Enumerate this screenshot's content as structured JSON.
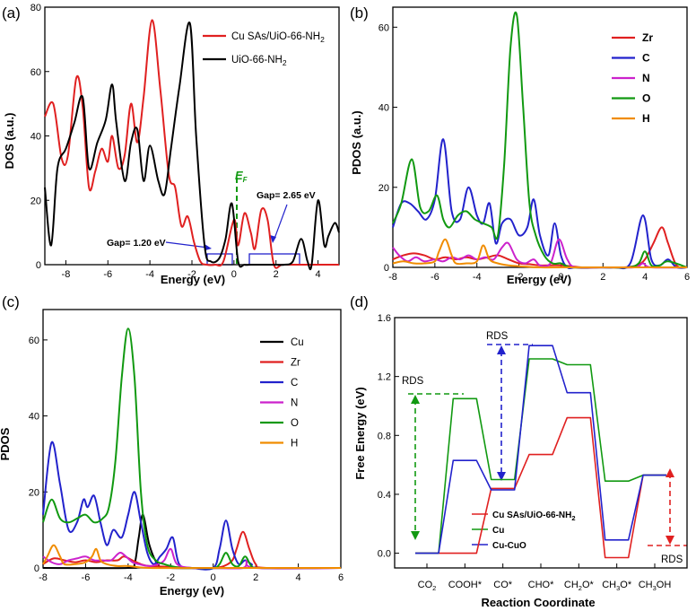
{
  "colors": {
    "black": "#000000",
    "red": "#e02020",
    "blue": "#2222cc",
    "magenta": "#cc22cc",
    "green": "#119911",
    "orange": "#f08c00"
  },
  "chart_data": [
    {
      "panel": "(a)",
      "type": "line",
      "xlabel": "Energy (eV)",
      "ylabel": "DOS (a.u.)",
      "xlim": [
        -9,
        5
      ],
      "ylim": [
        0,
        80
      ],
      "xticks": [
        "-8",
        "-6",
        "-4",
        "-2",
        "0",
        "2",
        "4"
      ],
      "yticks": [
        "0",
        "20",
        "40",
        "60",
        "80"
      ],
      "series": [
        {
          "name": "Cu SAs/UiO-66-NH2",
          "label_main": "Cu SAs/UiO-66-NH",
          "label_sub": "2",
          "color": "#e02020",
          "x": [
            -9,
            -8.6,
            -8.2,
            -7.9,
            -7.5,
            -7.2,
            -6.9,
            -6.6,
            -6.3,
            -6.0,
            -5.8,
            -5.5,
            -5.2,
            -4.9,
            -4.6,
            -4.3,
            -3.9,
            -3.5,
            -3.1,
            -2.8,
            -2.5,
            -2.2,
            -1.9,
            -1.6,
            -1.3,
            -0.9,
            -0.5,
            0,
            0.2,
            0.5,
            0.8,
            1.0,
            1.3,
            1.6,
            1.9,
            2.3,
            3,
            5
          ],
          "y": [
            46,
            50,
            33,
            34,
            58,
            49,
            24,
            29,
            36,
            32,
            40,
            30,
            34,
            50,
            38,
            52,
            76,
            54,
            28,
            24,
            12,
            15,
            7,
            1,
            0,
            0,
            1,
            14,
            6,
            16,
            10,
            5,
            17,
            14,
            0,
            0,
            0,
            0
          ]
        },
        {
          "name": "UiO-66-NH2",
          "label_main": "UiO-66-NH",
          "label_sub": "2",
          "color": "#000000",
          "x": [
            -9,
            -8.7,
            -8.4,
            -8.0,
            -7.6,
            -7.2,
            -6.9,
            -6.5,
            -6.1,
            -5.8,
            -5.6,
            -5.2,
            -4.9,
            -4.6,
            -4.3,
            -4.0,
            -3.6,
            -3.3,
            -3.0,
            -2.6,
            -2.1,
            -1.8,
            -1.4,
            -1.1,
            -0.7,
            -0.4,
            -0.1,
            0.2,
            0.5,
            0.8,
            1.2,
            1.6,
            2.0,
            2.4,
            2.8,
            3.2,
            3.5,
            3.7,
            4.0,
            4.3,
            4.5,
            4.8,
            5.0
          ],
          "y": [
            24,
            6,
            30,
            36,
            44,
            52,
            30,
            38,
            45,
            56,
            44,
            26,
            38,
            42,
            26,
            37,
            26,
            22,
            36,
            55,
            75,
            40,
            6,
            1,
            2,
            8,
            19,
            1,
            0,
            0,
            0,
            0,
            0,
            0,
            1,
            8,
            1,
            0,
            20,
            6,
            9,
            13,
            10
          ]
        }
      ],
      "annotations": {
        "ef_main": "E",
        "ef_sub": "F",
        "gap1": "Gap= 1.20 eV",
        "gap2": "Gap= 2.65 eV"
      }
    },
    {
      "panel": "(b)",
      "type": "line",
      "xlabel": "Energy (eV)",
      "ylabel": "PDOS (a.u.)",
      "xlim": [
        -8,
        6
      ],
      "ylim": [
        0,
        65
      ],
      "xticks": [
        "-8",
        "-6",
        "-4",
        "-2",
        "0",
        "2",
        "4",
        "6"
      ],
      "yticks": [
        "0",
        "20",
        "40",
        "60"
      ],
      "series": [
        {
          "name": "Zr",
          "color": "#e02020",
          "x": [
            -8,
            -7.5,
            -7,
            -6.5,
            -6,
            -5.5,
            -5,
            -4.5,
            -4,
            -3.5,
            -3,
            -2.5,
            -2,
            -1.5,
            -1,
            0,
            1,
            2,
            3,
            3.6,
            4.0,
            4.4,
            4.8,
            5.1,
            5.5,
            6
          ],
          "y": [
            2,
            3,
            3.5,
            3,
            2,
            2.5,
            2,
            2.5,
            2,
            2.5,
            3,
            2,
            1,
            0.8,
            0.5,
            0.5,
            0,
            0,
            0,
            0.5,
            2,
            6,
            10,
            6,
            0.5,
            0
          ]
        },
        {
          "name": "C",
          "color": "#2222cc",
          "x": [
            -8,
            -7.6,
            -7.2,
            -6.8,
            -6.4,
            -6,
            -5.6,
            -5.2,
            -4.8,
            -4.4,
            -4,
            -3.7,
            -3.4,
            -3.1,
            -2.8,
            -2.4,
            -2,
            -1.6,
            -1.3,
            -1,
            -0.6,
            -0.3,
            0,
            0.3,
            0.7,
            1.5,
            2.5,
            3.3,
            3.9,
            4.3,
            4.7,
            5.1,
            5.5,
            6
          ],
          "y": [
            10,
            16,
            16,
            14,
            12,
            17,
            32,
            14,
            12,
            20,
            13,
            11,
            16,
            6,
            11,
            12,
            8,
            10,
            17,
            8,
            3,
            11,
            3,
            0,
            0,
            0,
            0,
            1,
            13,
            2,
            0.5,
            2,
            0,
            0
          ]
        },
        {
          "name": "N",
          "color": "#cc22cc",
          "x": [
            -8,
            -7.7,
            -7.3,
            -6.9,
            -6.5,
            -6,
            -5.6,
            -5.2,
            -4.8,
            -4.4,
            -4,
            -3.6,
            -3.2,
            -2.8,
            -2.5,
            -2.1,
            -1.7,
            -1.3,
            -1,
            -0.5,
            -0.1,
            0.3,
            0.7,
            2,
            3.5,
            3.9,
            4.3,
            6
          ],
          "y": [
            5,
            3,
            1.5,
            2.5,
            1.5,
            2,
            1.5,
            2.5,
            2,
            3,
            2,
            2.5,
            2,
            5,
            6,
            2,
            1,
            2,
            0.5,
            1,
            7,
            2,
            0,
            0,
            0,
            1,
            0,
            0
          ]
        },
        {
          "name": "O",
          "color": "#119911",
          "x": [
            -8,
            -7.6,
            -7.1,
            -6.7,
            -6.3,
            -5.9,
            -5.6,
            -5.3,
            -4.9,
            -4.5,
            -4.1,
            -3.7,
            -3.3,
            -3.0,
            -2.7,
            -2.4,
            -2.1,
            -1.8,
            -1.5,
            -1.2,
            -0.8,
            -0.4,
            0,
            0.5,
            2,
            3.2,
            3.7,
            4.0,
            4.3,
            4.7,
            5.1,
            6
          ],
          "y": [
            11,
            16,
            27,
            15,
            14,
            18,
            12,
            10,
            13,
            14,
            12,
            11,
            10,
            8,
            26,
            55,
            63,
            40,
            16,
            8,
            3,
            1,
            1,
            0,
            0,
            0,
            1,
            4,
            0.5,
            0.5,
            1.5,
            0
          ]
        },
        {
          "name": "H",
          "color": "#f08c00",
          "x": [
            -8,
            -7.5,
            -7,
            -6.5,
            -6,
            -5.8,
            -5.5,
            -5.2,
            -5,
            -4.5,
            -4,
            -3.7,
            -3.4,
            -3,
            -2.5,
            -2,
            -1,
            0,
            4,
            6
          ],
          "y": [
            1,
            1.5,
            1,
            1,
            1.5,
            4,
            7,
            3,
            1,
            1,
            1.5,
            5.5,
            2,
            1,
            0.5,
            0.3,
            0,
            0,
            0,
            0
          ]
        }
      ]
    },
    {
      "panel": "(c)",
      "type": "line",
      "xlabel": "Energy (eV)",
      "ylabel": "PDOS",
      "xlim": [
        -8,
        6
      ],
      "ylim": [
        0,
        68
      ],
      "xticks": [
        "-8",
        "-6",
        "-4",
        "-2",
        "0",
        "2",
        "4",
        "6"
      ],
      "yticks": [
        "0",
        "20",
        "40",
        "60"
      ],
      "series": [
        {
          "name": "Cu",
          "color": "#000000",
          "x": [
            -8,
            -4,
            -3.7,
            -3.5,
            -3.3,
            -3.0,
            -2.6,
            -2,
            2,
            6
          ],
          "y": [
            0,
            0,
            1,
            8,
            14,
            6,
            1,
            0,
            0,
            0
          ]
        },
        {
          "name": "Zr",
          "color": "#e02020",
          "x": [
            -8,
            -7.5,
            -7,
            -6.5,
            -6,
            -5.5,
            -5,
            -4.5,
            -4.2,
            -3.8,
            -3.4,
            -3,
            -2,
            -1,
            0,
            0.5,
            0.9,
            1.1,
            1.4,
            1.7,
            2,
            2.5,
            6
          ],
          "y": [
            1,
            2.5,
            2,
            1.5,
            2,
            1.5,
            2,
            2,
            3,
            2,
            1,
            0.5,
            0.3,
            0,
            0,
            0.5,
            2,
            5,
            9.5,
            5,
            1,
            0,
            0
          ]
        },
        {
          "name": "C",
          "color": "#2222cc",
          "x": [
            -8,
            -7.6,
            -7.2,
            -6.8,
            -6.4,
            -6.1,
            -5.9,
            -5.6,
            -5.3,
            -5,
            -4.7,
            -4.3,
            -4,
            -3.7,
            -3.4,
            -3.1,
            -2.8,
            -2.5,
            -2.2,
            -1.9,
            -1.6,
            -1,
            0,
            0.3,
            0.6,
            0.9,
            1.2,
            1.5,
            1.8,
            2.2,
            6
          ],
          "y": [
            14,
            33,
            22,
            10,
            12,
            18,
            16,
            19,
            12,
            6,
            10,
            8,
            14,
            20,
            12,
            4,
            1,
            3,
            5,
            8,
            1,
            0,
            0,
            5,
            12.5,
            5,
            1,
            2,
            1,
            0,
            0
          ]
        },
        {
          "name": "N",
          "color": "#cc22cc",
          "x": [
            -8,
            -7.6,
            -7.2,
            -6.8,
            -6.4,
            -6,
            -5.6,
            -5.2,
            -4.8,
            -4.4,
            -4.1,
            -3.8,
            -3.5,
            -3,
            -2.6,
            -2.3,
            -2,
            -1.7,
            -1,
            0,
            1.4,
            1.6,
            2,
            6
          ],
          "y": [
            3,
            1.5,
            1,
            2,
            2.5,
            3,
            2,
            2,
            2,
            4,
            3,
            1.5,
            1,
            0.5,
            1,
            2,
            5,
            1,
            0,
            0,
            0,
            2,
            0,
            0
          ]
        },
        {
          "name": "O",
          "color": "#119911",
          "x": [
            -8,
            -7.6,
            -7.2,
            -6.8,
            -6.4,
            -6,
            -5.6,
            -5.2,
            -4.9,
            -4.6,
            -4.3,
            -4.0,
            -3.7,
            -3.4,
            -3.1,
            -2.7,
            -2.3,
            -2,
            -1.5,
            -1,
            0,
            0.3,
            0.6,
            0.9,
            1.2,
            1.5,
            1.8,
            2.2,
            6
          ],
          "y": [
            12,
            18,
            13,
            12,
            13,
            14,
            12,
            13,
            16,
            28,
            50,
            63,
            50,
            20,
            6,
            2,
            1,
            0.5,
            0,
            0,
            0,
            1,
            4,
            1,
            0.5,
            3,
            0.5,
            0,
            0
          ]
        },
        {
          "name": "H",
          "color": "#f08c00",
          "x": [
            -8,
            -7.8,
            -7.5,
            -7.2,
            -7,
            -6.5,
            -6,
            -5.7,
            -5.5,
            -5.3,
            -5,
            -4.5,
            -4,
            -3,
            0,
            6
          ],
          "y": [
            1,
            3,
            6,
            3,
            1,
            1,
            1.5,
            3,
            5,
            2,
            1,
            0.5,
            0.5,
            0,
            0,
            0
          ]
        }
      ]
    },
    {
      "panel": "(d)",
      "type": "line",
      "xlabel": "Reaction Coordinate",
      "ylabel": "Free Energy (eV)",
      "ylim": [
        -0.1,
        1.6
      ],
      "yticks": [
        "0.0",
        "0.4",
        "0.8",
        "1.2",
        "1.6"
      ],
      "categories": [
        {
          "main": "CO",
          "sub": "2",
          "rest": ""
        },
        {
          "main": "COOH*",
          "sub": "",
          "rest": ""
        },
        {
          "main": "CO*",
          "sub": "",
          "rest": ""
        },
        {
          "main": "CHO*",
          "sub": "",
          "rest": ""
        },
        {
          "main": "CH",
          "sub": "2",
          "rest": "O*"
        },
        {
          "main": "CH",
          "sub": "3",
          "rest": "O*"
        },
        {
          "main": "CH",
          "sub": "3",
          "rest": "OH"
        }
      ],
      "series": [
        {
          "name": "Cu SAs/UiO-66-NH2",
          "label_main": "Cu SAs/UiO-66-NH",
          "label_sub": "2",
          "color": "#e02020",
          "values": [
            0.0,
            0.0,
            0.44,
            0.67,
            0.92,
            -0.03,
            0.53
          ]
        },
        {
          "name": "Cu",
          "label_main": "Cu",
          "label_sub": "",
          "color": "#119911",
          "values": [
            0.0,
            1.05,
            0.5,
            1.32,
            1.28,
            0.49,
            0.53
          ]
        },
        {
          "name": "Cu-CuO",
          "label_main": "Cu-CuO",
          "label_sub": "",
          "color": "#2222cc",
          "values": [
            0.0,
            0.63,
            0.43,
            1.41,
            1.09,
            0.09,
            0.53
          ]
        }
      ],
      "annotations": {
        "rds_left": "RDS",
        "rds_top": "RDS",
        "rds_right": "RDS"
      }
    }
  ]
}
